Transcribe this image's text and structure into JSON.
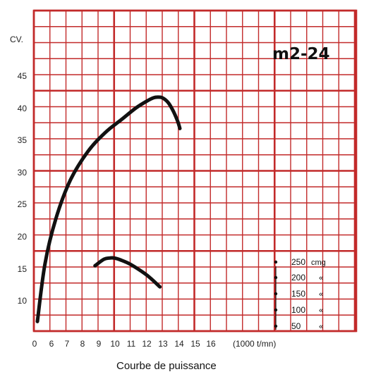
{
  "chart_data": {
    "type": "line",
    "title": "m2-24",
    "caption": "Courbe de puissance",
    "ylabel": "CV.",
    "xlabel": "(1000 t/mn)",
    "x_ticks": [
      "0",
      "6",
      "7",
      "8",
      "9",
      "10",
      "11",
      "12",
      "13",
      "14",
      "15",
      "16"
    ],
    "y_ticks": [
      "45",
      "40",
      "35",
      "30",
      "25",
      "20",
      "15",
      "10"
    ],
    "grid": true,
    "series": [
      {
        "name": "",
        "x": [
          0,
          0.95,
          2.3,
          4.1,
          6.3,
          8.5,
          10.5,
          12.3,
          13.7,
          14.5,
          15.0,
          15.6,
          16.3,
          16.9,
          17.5,
          17.8
        ],
        "y": [
          5,
          14,
          21,
          27,
          31.5,
          34.5,
          36.5,
          38.3,
          39.4,
          39.9,
          40.0,
          39.9,
          39.2,
          38.0,
          36.3,
          35.1
        ]
      },
      {
        "name": "",
        "x": [
          7.2,
          8.3,
          9.0,
          9.6,
          10.4,
          11.5,
          12.8,
          14.0,
          15.3
        ],
        "y": [
          13.7,
          14.7,
          14.9,
          14.9,
          14.6,
          14.0,
          13.0,
          11.9,
          10.4
        ]
      }
    ],
    "scale": {
      "labels": [
        "250",
        "200",
        "150",
        "100",
        "50"
      ],
      "unit": "cmg",
      "mark": "«"
    }
  }
}
